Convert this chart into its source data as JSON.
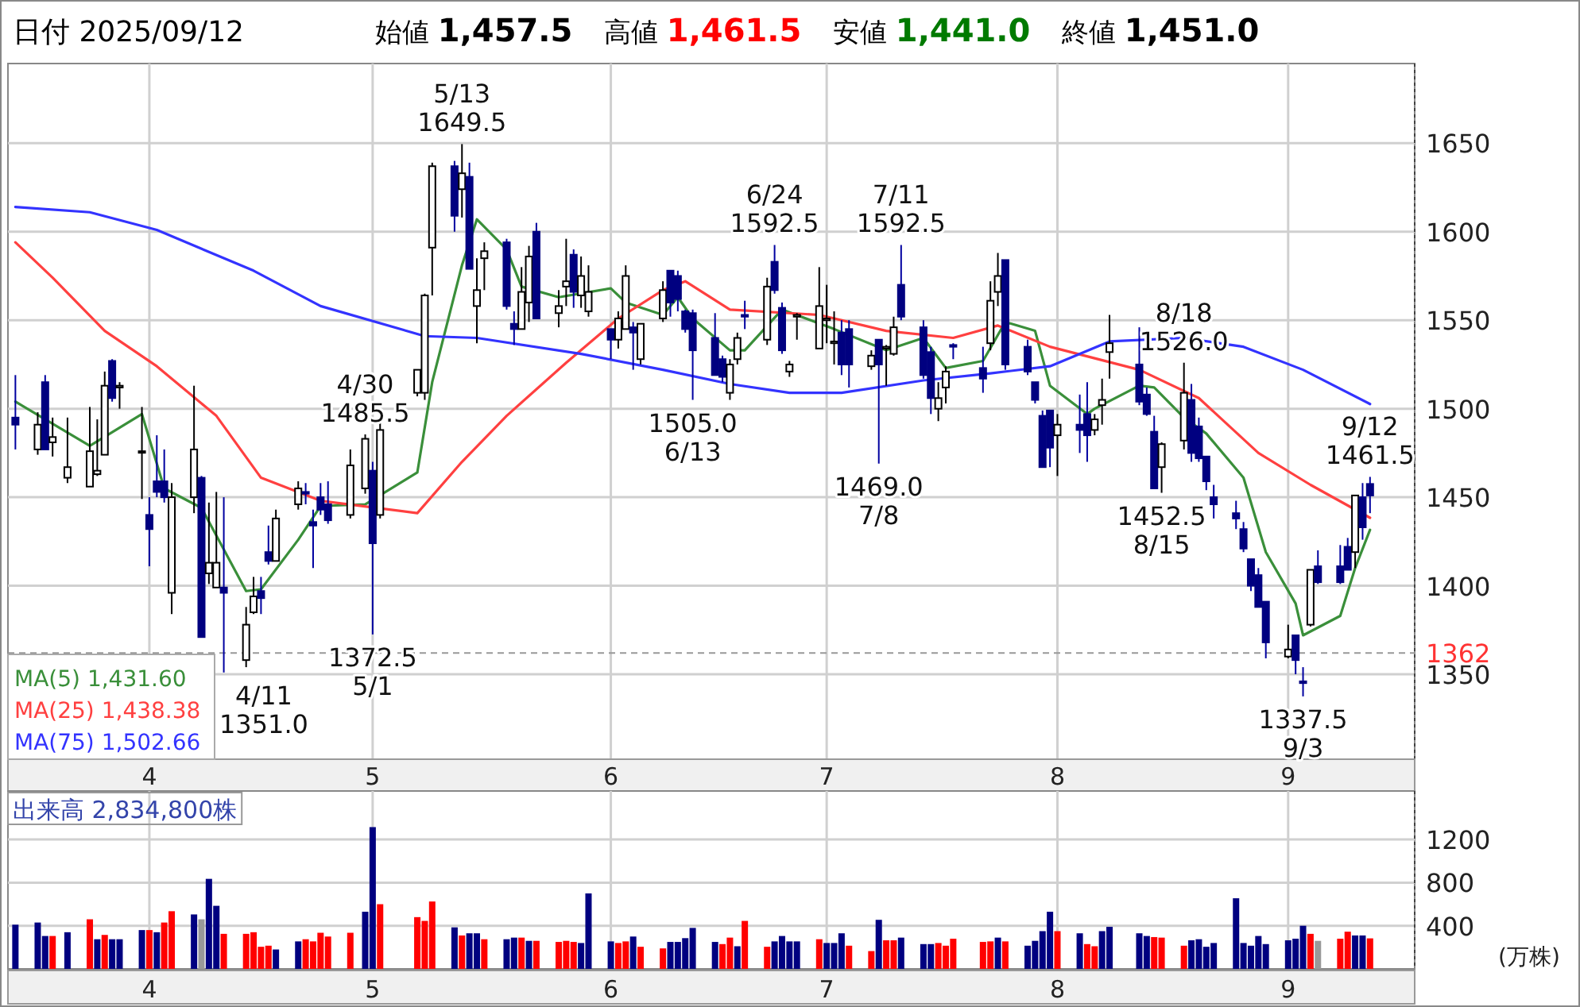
{
  "chart_data": [
    {
      "type": "candlestick",
      "title": "日付 2025/09/12",
      "annotations": [
        "始値 1,457.5",
        "高値 1,461.5",
        "安値 1,441.0",
        "終値 1,451.0",
        {
          "text": "4/11 1351.0",
          "x": "2025-04-11",
          "y": 1351.0
        },
        {
          "text": "4/30 1485.5",
          "x": "2025-04-30",
          "y": 1485.5
        },
        {
          "text": "1372.5 5/1",
          "x": "2025-05-01",
          "y": 1372.5
        },
        {
          "text": "5/13 1649.5",
          "x": "2025-05-13",
          "y": 1649.5
        },
        {
          "text": "1505.0 6/13",
          "x": "2025-06-13",
          "y": 1505.0
        },
        {
          "text": "6/24 1592.5",
          "x": "2025-06-24",
          "y": 1592.5
        },
        {
          "text": "1469.0 7/8",
          "x": "2025-07-08",
          "y": 1469.0
        },
        {
          "text": "7/11 1592.5",
          "x": "2025-07-11",
          "y": 1592.5
        },
        {
          "text": "8/18 1526.0",
          "x": "2025-08-18",
          "y": 1526.0
        },
        {
          "text": "1452.5 8/15",
          "x": "2025-08-15",
          "y": 1452.5
        },
        {
          "text": "1337.5 9/3",
          "x": "2025-09-03",
          "y": 1337.5
        },
        {
          "text": "9/12 1461.5",
          "x": "2025-09-12",
          "y": 1461.5
        }
      ],
      "x": [
        "2025-03-14",
        "2025-03-17",
        "2025-03-18",
        "2025-03-19",
        "2025-03-21",
        "2025-03-24",
        "2025-03-25",
        "2025-03-26",
        "2025-03-27",
        "2025-03-28",
        "2025-03-31",
        "2025-04-01",
        "2025-04-02",
        "2025-04-03",
        "2025-04-04",
        "2025-04-07",
        "2025-04-08",
        "2025-04-09",
        "2025-04-10",
        "2025-04-11",
        "2025-04-14",
        "2025-04-15",
        "2025-04-16",
        "2025-04-17",
        "2025-04-18",
        "2025-04-21",
        "2025-04-22",
        "2025-04-23",
        "2025-04-24",
        "2025-04-25",
        "2025-04-28",
        "2025-04-30",
        "2025-05-01",
        "2025-05-02",
        "2025-05-07",
        "2025-05-08",
        "2025-05-09",
        "2025-05-12",
        "2025-05-13",
        "2025-05-14",
        "2025-05-15",
        "2025-05-16",
        "2025-05-19",
        "2025-05-20",
        "2025-05-21",
        "2025-05-22",
        "2025-05-23",
        "2025-05-26",
        "2025-05-27",
        "2025-05-28",
        "2025-05-29",
        "2025-05-30",
        "2025-06-02",
        "2025-06-03",
        "2025-06-04",
        "2025-06-05",
        "2025-06-06",
        "2025-06-09",
        "2025-06-10",
        "2025-06-11",
        "2025-06-12",
        "2025-06-13",
        "2025-06-16",
        "2025-06-17",
        "2025-06-18",
        "2025-06-19",
        "2025-06-20",
        "2025-06-23",
        "2025-06-24",
        "2025-06-25",
        "2025-06-26",
        "2025-06-27",
        "2025-06-30",
        "2025-07-01",
        "2025-07-02",
        "2025-07-03",
        "2025-07-04",
        "2025-07-07",
        "2025-07-08",
        "2025-07-09",
        "2025-07-10",
        "2025-07-11",
        "2025-07-14",
        "2025-07-15",
        "2025-07-16",
        "2025-07-17",
        "2025-07-18",
        "2025-07-22",
        "2025-07-23",
        "2025-07-24",
        "2025-07-25",
        "2025-07-28",
        "2025-07-29",
        "2025-07-30",
        "2025-07-31",
        "2025-08-01",
        "2025-08-04",
        "2025-08-05",
        "2025-08-06",
        "2025-08-07",
        "2025-08-08",
        "2025-08-12",
        "2025-08-13",
        "2025-08-14",
        "2025-08-15",
        "2025-08-18",
        "2025-08-19",
        "2025-08-20",
        "2025-08-21",
        "2025-08-22",
        "2025-08-25",
        "2025-08-26",
        "2025-08-27",
        "2025-08-28",
        "2025-08-29",
        "2025-09-01",
        "2025-09-02",
        "2025-09-03",
        "2025-09-04",
        "2025-09-05",
        "2025-09-08",
        "2025-09-09",
        "2025-09-10",
        "2025-09-11",
        "2025-09-12"
      ],
      "xlim": [
        "2025-03-13",
        "2025-09-18"
      ],
      "xticks": [
        {
          "value": "2025-04-01",
          "label": "4"
        },
        {
          "value": "2025-05-01",
          "label": "5"
        },
        {
          "value": "2025-06-02",
          "label": "6"
        },
        {
          "value": "2025-07-01",
          "label": "7"
        },
        {
          "value": "2025-08-01",
          "label": "8"
        },
        {
          "value": "2025-09-01",
          "label": "9"
        }
      ],
      "ohlc": [
        [
          1495,
          1519,
          1477,
          1491
        ],
        [
          1477,
          1498,
          1474,
          1491
        ],
        [
          1515,
          1519,
          1477,
          1477
        ],
        [
          1481,
          1495,
          1473,
          1484
        ],
        [
          1461,
          1495,
          1458,
          1467
        ],
        [
          1456,
          1501,
          1456,
          1476
        ],
        [
          1463,
          1494,
          1462,
          1465
        ],
        [
          1474,
          1521,
          1474,
          1513
        ],
        [
          1527,
          1528,
          1504,
          1506
        ],
        [
          1512,
          1515,
          1500,
          1513
        ],
        [
          1476,
          1501,
          1449,
          1476
        ],
        [
          1440,
          1450,
          1411,
          1432
        ],
        [
          1459,
          1485,
          1450,
          1453
        ],
        [
          1459,
          1477,
          1447,
          1450
        ],
        [
          1396,
          1458,
          1384,
          1450
        ],
        [
          1450,
          1513,
          1441,
          1477
        ],
        [
          1461,
          1462,
          1371,
          1371
        ],
        [
          1407,
          1447,
          1401,
          1413
        ],
        [
          1399,
          1453,
          1399,
          1413
        ],
        [
          1399,
          1450,
          1351,
          1396
        ],
        [
          1358,
          1388,
          1354,
          1378
        ],
        [
          1385,
          1405,
          1384,
          1394
        ],
        [
          1397,
          1405,
          1384,
          1393
        ],
        [
          1419,
          1434,
          1412,
          1414
        ],
        [
          1414,
          1443,
          1414,
          1438
        ],
        [
          1446,
          1459,
          1443,
          1455
        ],
        [
          1453,
          1458,
          1446,
          1452
        ],
        [
          1436,
          1443,
          1410,
          1434
        ],
        [
          1450,
          1458,
          1440,
          1443
        ],
        [
          1446,
          1459,
          1435,
          1437
        ],
        [
          1440,
          1477,
          1438,
          1468
        ],
        [
          1455,
          1485.5,
          1452,
          1483
        ],
        [
          1465,
          1470,
          1372.5,
          1424
        ],
        [
          1440,
          1495,
          1438,
          1488
        ],
        [
          1509,
          1522,
          1507,
          1522
        ],
        [
          1509,
          1565,
          1505,
          1564
        ],
        [
          1591,
          1639,
          1564,
          1637
        ],
        [
          1637,
          1640,
          1600,
          1609
        ],
        [
          1624,
          1649.5,
          1608,
          1633
        ],
        [
          1631,
          1639,
          1579,
          1579
        ],
        [
          1558,
          1585,
          1537,
          1567
        ],
        [
          1585,
          1594,
          1567,
          1589
        ],
        [
          1594,
          1596,
          1556,
          1558
        ],
        [
          1548,
          1555,
          1536,
          1545
        ],
        [
          1545,
          1580,
          1545,
          1566
        ],
        [
          1560,
          1592,
          1549,
          1586
        ],
        [
          1600,
          1605,
          1551,
          1551
        ],
        [
          1554,
          1567,
          1546,
          1558
        ],
        [
          1569,
          1596,
          1558,
          1572
        ],
        [
          1587,
          1590,
          1557,
          1566
        ],
        [
          1564,
          1586,
          1557,
          1575
        ],
        [
          1555,
          1581,
          1552,
          1566
        ],
        [
          1545,
          1545,
          1528,
          1539
        ],
        [
          1539,
          1555,
          1534,
          1551
        ],
        [
          1545,
          1581,
          1545,
          1575
        ],
        [
          1546,
          1549,
          1522,
          1543
        ],
        [
          1528,
          1548,
          1525,
          1548
        ],
        [
          1551,
          1572,
          1549,
          1567
        ],
        [
          1578,
          1578,
          1552,
          1560
        ],
        [
          1575,
          1578,
          1555,
          1562
        ],
        [
          1555,
          1556,
          1543,
          1545
        ],
        [
          1554,
          1556,
          1505,
          1533
        ],
        [
          1540,
          1554,
          1519,
          1519
        ],
        [
          1528,
          1530,
          1515,
          1518
        ],
        [
          1509,
          1528,
          1505,
          1525
        ],
        [
          1528,
          1543,
          1525,
          1540
        ],
        [
          1553,
          1561,
          1545,
          1552
        ],
        [
          1539,
          1574,
          1536,
          1569
        ],
        [
          1583,
          1592.5,
          1565,
          1567
        ],
        [
          1557,
          1560,
          1531,
          1533
        ],
        [
          1521,
          1527,
          1518,
          1525
        ],
        [
          1552,
          1554,
          1539,
          1553
        ],
        [
          1534,
          1580,
          1534,
          1558
        ],
        [
          1550,
          1570,
          1537,
          1551
        ],
        [
          1537,
          1555,
          1525,
          1538
        ],
        [
          1543,
          1550,
          1519,
          1525
        ],
        [
          1545,
          1550,
          1512,
          1525
        ],
        [
          1524,
          1533,
          1522,
          1530
        ],
        [
          1539,
          1539,
          1469,
          1525
        ],
        [
          1534,
          1536,
          1513,
          1535
        ],
        [
          1531,
          1552,
          1530,
          1546
        ],
        [
          1570,
          1592.5,
          1550,
          1552
        ],
        [
          1546,
          1550,
          1517,
          1519
        ],
        [
          1532,
          1535,
          1497,
          1506
        ],
        [
          1500,
          1515,
          1493,
          1506
        ],
        [
          1512,
          1524,
          1503,
          1521
        ],
        [
          1536,
          1537,
          1528,
          1535
        ],
        [
          1523,
          1535,
          1509,
          1517
        ],
        [
          1537,
          1572,
          1533,
          1561
        ],
        [
          1566,
          1588,
          1558,
          1575
        ],
        [
          1584,
          1584,
          1522,
          1525
        ],
        [
          1535,
          1539,
          1519,
          1521
        ],
        [
          1515,
          1515,
          1503,
          1505
        ],
        [
          1496,
          1499,
          1467,
          1467
        ],
        [
          1499,
          1499,
          1467,
          1478
        ],
        [
          1485,
          1497,
          1462,
          1491
        ],
        [
          1491,
          1508,
          1475,
          1488
        ],
        [
          1497,
          1515,
          1470,
          1485
        ],
        [
          1488,
          1497,
          1485,
          1494
        ],
        [
          1502,
          1517,
          1491,
          1505
        ],
        [
          1532,
          1553,
          1517,
          1537
        ],
        [
          1525,
          1546,
          1502,
          1504
        ],
        [
          1508,
          1512,
          1496,
          1497
        ],
        [
          1487,
          1496,
          1455,
          1455
        ],
        [
          1467,
          1481,
          1452.5,
          1480
        ],
        [
          1482,
          1526,
          1477,
          1509
        ],
        [
          1505,
          1514,
          1470,
          1475
        ],
        [
          1490,
          1495,
          1470,
          1472
        ],
        [
          1473,
          1473,
          1454,
          1459
        ],
        [
          1450,
          1457,
          1438,
          1446
        ],
        [
          1441,
          1448,
          1432,
          1438
        ],
        [
          1432,
          1436,
          1419,
          1421
        ],
        [
          1415,
          1415,
          1397,
          1400
        ],
        [
          1406,
          1410,
          1388,
          1388
        ],
        [
          1391,
          1391,
          1359,
          1368
        ],
        [
          1360,
          1378,
          1359,
          1364
        ],
        [
          1372,
          1372,
          1350,
          1358
        ],
        [
          1346,
          1354,
          1337.5,
          1345
        ],
        [
          1378,
          1409,
          1377,
          1409
        ],
        [
          1411,
          1420,
          1401,
          1402
        ],
        [
          1411,
          1423,
          1401,
          1402
        ],
        [
          1422,
          1427,
          1409,
          1409
        ],
        [
          1419,
          1451,
          1410,
          1451
        ],
        [
          1450,
          1458,
          1426,
          1433
        ],
        [
          1457.5,
          1461.5,
          1441,
          1451
        ]
      ],
      "series": [
        {
          "type": "line",
          "name": "MA(5) 1,431.60",
          "color": "#3a8f3a",
          "x": [
            "2025-03-14",
            "2025-03-24",
            "2025-03-31",
            "2025-04-03",
            "2025-04-08",
            "2025-04-14",
            "2025-04-16",
            "2025-04-21",
            "2025-04-24",
            "2025-04-30",
            "2025-05-07",
            "2025-05-09",
            "2025-05-13",
            "2025-05-15",
            "2025-05-19",
            "2025-05-21",
            "2025-05-26",
            "2025-06-02",
            "2025-06-04",
            "2025-06-09",
            "2025-06-11",
            "2025-06-13",
            "2025-06-18",
            "2025-06-20",
            "2025-06-25",
            "2025-07-02",
            "2025-07-09",
            "2025-07-14",
            "2025-07-17",
            "2025-07-22",
            "2025-07-25",
            "2025-07-29",
            "2025-07-31",
            "2025-08-05",
            "2025-08-06",
            "2025-08-12",
            "2025-08-14",
            "2025-08-18",
            "2025-08-21",
            "2025-08-26",
            "2025-08-29",
            "2025-09-02",
            "2025-09-03",
            "2025-09-08",
            "2025-09-10",
            "2025-09-12"
          ],
          "values": [
            1504,
            1479,
            1497,
            1455,
            1444,
            1397,
            1398,
            1426,
            1445,
            1446,
            1464,
            1515,
            1581,
            1607,
            1590,
            1569,
            1563,
            1568,
            1560,
            1553,
            1563,
            1551,
            1533,
            1533,
            1556,
            1545,
            1533,
            1540,
            1523,
            1527,
            1549,
            1544,
            1513,
            1497,
            1500,
            1513,
            1512,
            1495,
            1486,
            1461,
            1419,
            1390,
            1372,
            1383,
            1410,
            1431.6
          ]
        },
        {
          "type": "line",
          "name": "MA(25) 1,438.38",
          "color": "#ff4040",
          "x": [
            "2025-03-14",
            "2025-03-19",
            "2025-03-26",
            "2025-04-02",
            "2025-04-10",
            "2025-04-16",
            "2025-04-24",
            "2025-05-07",
            "2025-05-13",
            "2025-05-19",
            "2025-05-27",
            "2025-06-03",
            "2025-06-09",
            "2025-06-12",
            "2025-06-18",
            "2025-06-30",
            "2025-07-09",
            "2025-07-18",
            "2025-07-24",
            "2025-07-31",
            "2025-08-12",
            "2025-08-20",
            "2025-08-28",
            "2025-09-04",
            "2025-09-12"
          ],
          "values": [
            1594,
            1574,
            1544,
            1524,
            1496,
            1461,
            1448,
            1441,
            1470,
            1496,
            1526,
            1551,
            1567,
            1572,
            1556,
            1553,
            1544,
            1540,
            1547,
            1535,
            1522,
            1506,
            1475,
            1457,
            1438.38
          ]
        },
        {
          "type": "line",
          "name": "MA(75) 1,502.66",
          "color": "#3333ff",
          "x": [
            "2025-03-14",
            "2025-03-24",
            "2025-04-02",
            "2025-04-15",
            "2025-04-24",
            "2025-05-08",
            "2025-05-15",
            "2025-05-29",
            "2025-06-09",
            "2025-06-18",
            "2025-06-26",
            "2025-07-03",
            "2025-07-14",
            "2025-07-23",
            "2025-07-31",
            "2025-08-08",
            "2025-08-18",
            "2025-08-26",
            "2025-09-03",
            "2025-09-12"
          ],
          "values": [
            1614,
            1611,
            1601,
            1578,
            1558,
            1541,
            1540,
            1531,
            1522,
            1514,
            1509,
            1509,
            1516,
            1520,
            1524,
            1538,
            1540,
            1535,
            1522,
            1502.66
          ]
        }
      ],
      "ylim": [
        1302,
        1695
      ],
      "yticks": [
        1350,
        1400,
        1450,
        1500,
        1550,
        1600,
        1650
      ],
      "ref_lines": [
        {
          "axis": "y",
          "value": 1362,
          "label": "1362",
          "color": "#999999",
          "line_style": "dashed"
        }
      ],
      "grid": true,
      "legend": "bottom left"
    },
    {
      "type": "bar",
      "title": "出来高 2,834,800株",
      "ylabel": "(万株)",
      "x": [
        "2025-03-14",
        "2025-03-17",
        "2025-03-18",
        "2025-03-19",
        "2025-03-21",
        "2025-03-24",
        "2025-03-25",
        "2025-03-26",
        "2025-03-27",
        "2025-03-28",
        "2025-03-31",
        "2025-04-01",
        "2025-04-02",
        "2025-04-03",
        "2025-04-04",
        "2025-04-07",
        "2025-04-08",
        "2025-04-09",
        "2025-04-10",
        "2025-04-11",
        "2025-04-14",
        "2025-04-15",
        "2025-04-16",
        "2025-04-17",
        "2025-04-18",
        "2025-04-21",
        "2025-04-22",
        "2025-04-23",
        "2025-04-24",
        "2025-04-25",
        "2025-04-28",
        "2025-04-30",
        "2025-05-01",
        "2025-05-02",
        "2025-05-07",
        "2025-05-08",
        "2025-05-09",
        "2025-05-12",
        "2025-05-13",
        "2025-05-14",
        "2025-05-15",
        "2025-05-16",
        "2025-05-19",
        "2025-05-20",
        "2025-05-21",
        "2025-05-22",
        "2025-05-23",
        "2025-05-26",
        "2025-05-27",
        "2025-05-28",
        "2025-05-29",
        "2025-05-30",
        "2025-06-02",
        "2025-06-03",
        "2025-06-04",
        "2025-06-05",
        "2025-06-06",
        "2025-06-09",
        "2025-06-10",
        "2025-06-11",
        "2025-06-12",
        "2025-06-13",
        "2025-06-16",
        "2025-06-17",
        "2025-06-18",
        "2025-06-19",
        "2025-06-20",
        "2025-06-23",
        "2025-06-24",
        "2025-06-25",
        "2025-06-26",
        "2025-06-27",
        "2025-06-30",
        "2025-07-01",
        "2025-07-02",
        "2025-07-03",
        "2025-07-04",
        "2025-07-07",
        "2025-07-08",
        "2025-07-09",
        "2025-07-10",
        "2025-07-11",
        "2025-07-14",
        "2025-07-15",
        "2025-07-16",
        "2025-07-17",
        "2025-07-18",
        "2025-07-22",
        "2025-07-23",
        "2025-07-24",
        "2025-07-25",
        "2025-07-28",
        "2025-07-29",
        "2025-07-30",
        "2025-07-31",
        "2025-08-01",
        "2025-08-04",
        "2025-08-05",
        "2025-08-06",
        "2025-08-07",
        "2025-08-08",
        "2025-08-12",
        "2025-08-13",
        "2025-08-14",
        "2025-08-15",
        "2025-08-18",
        "2025-08-19",
        "2025-08-20",
        "2025-08-21",
        "2025-08-22",
        "2025-08-25",
        "2025-08-26",
        "2025-08-27",
        "2025-08-28",
        "2025-08-29",
        "2025-09-01",
        "2025-09-02",
        "2025-09-03",
        "2025-09-04",
        "2025-09-05",
        "2025-09-08",
        "2025-09-09",
        "2025-09-10",
        "2025-09-11",
        "2025-09-12"
      ],
      "xlim": [
        "2025-03-13",
        "2025-09-18"
      ],
      "xticks": [
        {
          "value": "2025-04-01",
          "label": "4"
        },
        {
          "value": "2025-05-01",
          "label": "5"
        },
        {
          "value": "2025-06-02",
          "label": "6"
        },
        {
          "value": "2025-07-01",
          "label": "7"
        },
        {
          "value": "2025-08-01",
          "label": "8"
        },
        {
          "value": "2025-09-01",
          "label": "9"
        }
      ],
      "values": [
        410,
        430,
        305,
        305,
        340,
        460,
        275,
        315,
        275,
        275,
        360,
        360,
        340,
        430,
        535,
        505,
        460,
        835,
        585,
        325,
        325,
        340,
        205,
        215,
        180,
        255,
        275,
        255,
        335,
        300,
        335,
        530,
        1315,
        600,
        480,
        445,
        625,
        385,
        310,
        330,
        330,
        275,
        275,
        290,
        290,
        260,
        260,
        250,
        260,
        250,
        240,
        700,
        255,
        240,
        255,
        300,
        205,
        190,
        250,
        250,
        285,
        380,
        250,
        230,
        290,
        210,
        445,
        205,
        255,
        305,
        255,
        255,
        275,
        240,
        240,
        330,
        215,
        165,
        455,
        265,
        265,
        290,
        230,
        230,
        240,
        215,
        280,
        250,
        255,
        290,
        255,
        215,
        260,
        350,
        530,
        350,
        330,
        230,
        210,
        350,
        390,
        330,
        305,
        295,
        290,
        215,
        265,
        275,
        205,
        240,
        655,
        240,
        215,
        305,
        230,
        265,
        280,
        400,
        325,
        260,
        280,
        345,
        310,
        310,
        283
      ],
      "colors": [
        "#000080",
        "#000080",
        "#000080",
        "#ff0000",
        "#000080",
        "#ff0000",
        "#000080",
        "#ff0000",
        "#000080",
        "#000080",
        "#000080",
        "#ff0000",
        "#000080",
        "#ff0000",
        "#ff0000",
        "#000080",
        "#999999",
        "#000080",
        "#000080",
        "#ff0000",
        "#ff0000",
        "#ff0000",
        "#ff0000",
        "#ff0000",
        "#000080",
        "#000080",
        "#ff0000",
        "#ff0000",
        "#ff0000",
        "#ff0000",
        "#ff0000",
        "#000080",
        "#000080",
        "#ff0000",
        "#ff0000",
        "#ff0000",
        "#ff0000",
        "#000080",
        "#ff0000",
        "#000080",
        "#000080",
        "#ff0000",
        "#000080",
        "#000080",
        "#ff0000",
        "#000080",
        "#ff0000",
        "#ff0000",
        "#ff0000",
        "#ff0000",
        "#000080",
        "#000080",
        "#000080",
        "#ff0000",
        "#ff0000",
        "#000080",
        "#ff0000",
        "#ff0000",
        "#000080",
        "#000080",
        "#000080",
        "#000080",
        "#000080",
        "#ff0000",
        "#ff0000",
        "#000080",
        "#ff0000",
        "#ff0000",
        "#000080",
        "#000080",
        "#000080",
        "#000080",
        "#ff0000",
        "#000080",
        "#000080",
        "#000080",
        "#ff0000",
        "#ff0000",
        "#000080",
        "#ff0000",
        "#ff0000",
        "#000080",
        "#000080",
        "#000080",
        "#ff0000",
        "#ff0000",
        "#ff0000",
        "#ff0000",
        "#ff0000",
        "#000080",
        "#ff0000",
        "#000080",
        "#000080",
        "#000080",
        "#000080",
        "#ff0000",
        "#000080",
        "#ff0000",
        "#ff0000",
        "#000080",
        "#000080",
        "#000080",
        "#000080",
        "#ff0000",
        "#ff0000",
        "#ff0000",
        "#000080",
        "#000080",
        "#000080",
        "#000080",
        "#000080",
        "#000080",
        "#000080",
        "#000080",
        "#000080",
        "#000080",
        "#000080",
        "#000080",
        "#ff0000",
        "#999999",
        "#ff0000",
        "#ff0000",
        "#000080",
        "#000080",
        "#ff0000"
      ],
      "ylim": [
        0,
        1650
      ],
      "yticks": [
        400,
        800,
        1200
      ],
      "grid": true
    }
  ]
}
